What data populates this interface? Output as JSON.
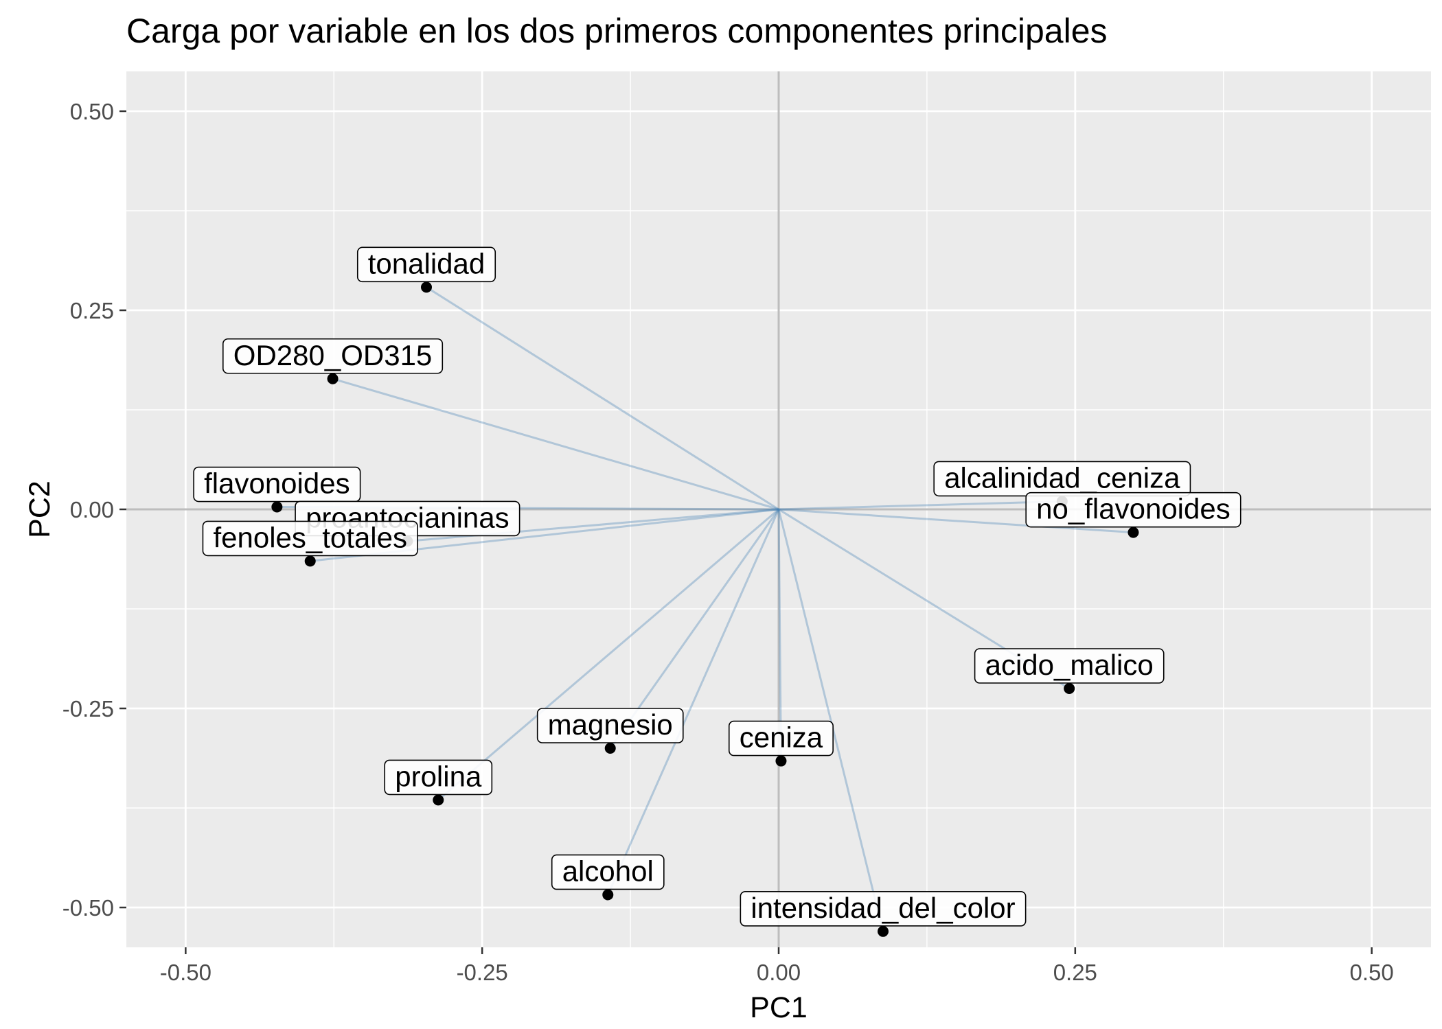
{
  "chart_data": {
    "type": "scatter",
    "title": "Carga por variable en los dos primeros componentes principales",
    "xlabel": "PC1",
    "ylabel": "PC2",
    "xlim": [
      -0.55,
      0.55
    ],
    "ylim": [
      -0.55,
      0.55
    ],
    "x_ticks": [
      -0.5,
      -0.25,
      0.0,
      0.25,
      0.5
    ],
    "y_ticks": [
      -0.5,
      -0.25,
      0.0,
      0.25,
      0.5
    ],
    "x_tick_labels": [
      "-0.50",
      "-0.25",
      "0.00",
      "0.25",
      "0.50"
    ],
    "y_tick_labels": [
      "-0.50",
      "-0.25",
      "0.00",
      "0.25",
      "0.50"
    ],
    "grid": true,
    "reference_lines": {
      "x": 0,
      "y": 0
    },
    "segment_color": "#4682b4",
    "panel_color": "#ebebeb",
    "points": [
      {
        "label": "tonalidad",
        "x": -0.297,
        "y": 0.279
      },
      {
        "label": "OD280_OD315",
        "x": -0.376,
        "y": 0.164
      },
      {
        "label": "flavonoides",
        "x": -0.423,
        "y": 0.003
      },
      {
        "label": "proantocianinas",
        "x": -0.313,
        "y": -0.04
      },
      {
        "label": "fenoles_totales",
        "x": -0.395,
        "y": -0.065
      },
      {
        "label": "alcalinidad_ceniza",
        "x": 0.239,
        "y": 0.01
      },
      {
        "label": "no_flavonoides",
        "x": 0.299,
        "y": -0.029
      },
      {
        "label": "acido_malico",
        "x": 0.245,
        "y": -0.225
      },
      {
        "label": "magnesio",
        "x": -0.142,
        "y": -0.3
      },
      {
        "label": "ceniza",
        "x": 0.002,
        "y": -0.316
      },
      {
        "label": "prolina",
        "x": -0.287,
        "y": -0.365
      },
      {
        "label": "alcohol",
        "x": -0.144,
        "y": -0.484
      },
      {
        "label": "intensidad_del_color",
        "x": 0.088,
        "y": -0.53
      }
    ]
  }
}
